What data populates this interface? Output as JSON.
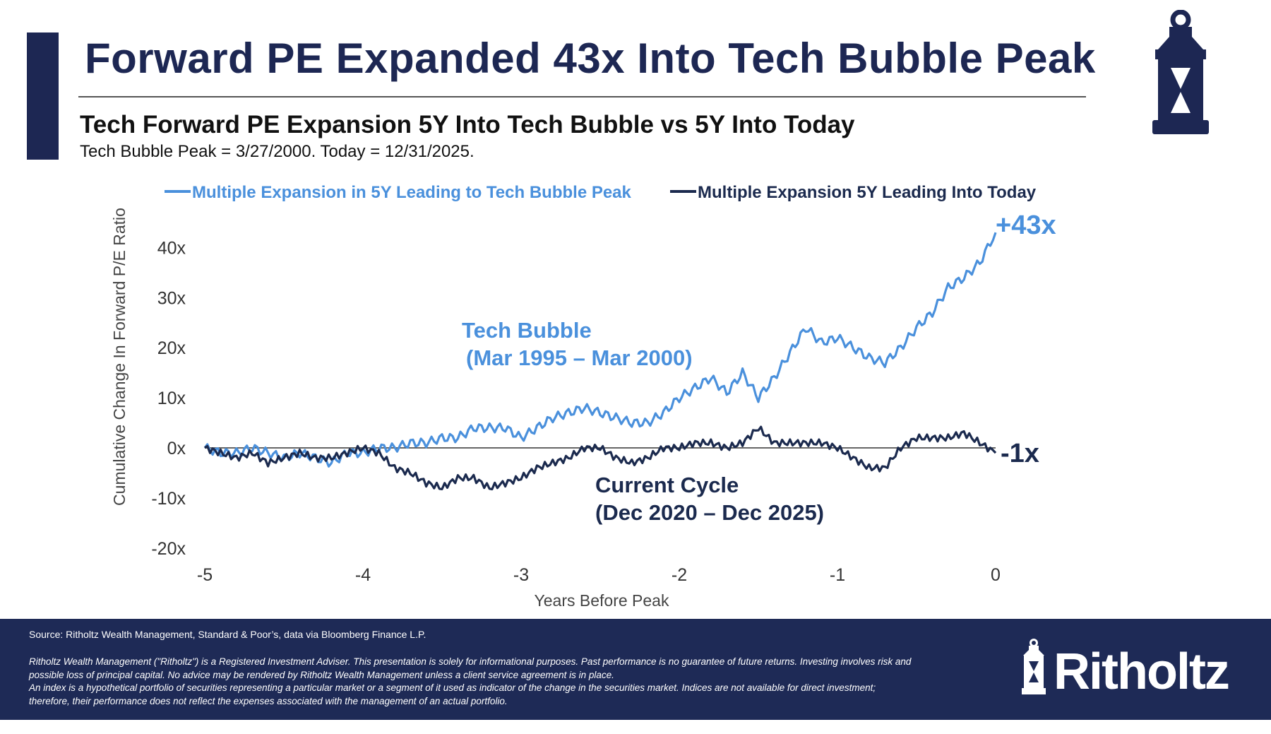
{
  "header": {
    "title": "Forward PE Expanded 43x Into Tech Bubble Peak",
    "subtitle": "Tech Forward PE Expansion 5Y Into Tech Bubble vs 5Y Into Today",
    "note": "Tech Bubble Peak = 3/27/2000. Today = 12/31/2025.",
    "icon": "lantern-icon"
  },
  "chart_data": {
    "type": "line",
    "xlabel": "Years Before Peak",
    "ylabel": "Cumulative Change In Forward P/E Ratio",
    "xlim": [
      -5,
      0
    ],
    "ylim": [
      -20,
      40
    ],
    "xticks": [
      "-5",
      "-4",
      "-3",
      "-2",
      "-1",
      "0"
    ],
    "yticks": [
      "40x",
      "30x",
      "20x",
      "10x",
      "0x",
      "-10x",
      "-20x"
    ],
    "grid": false,
    "legend_position": "top",
    "x": [
      -5,
      -4.9,
      -4.8,
      -4.7,
      -4.6,
      -4.5,
      -4.4,
      -4.3,
      -4.2,
      -4.1,
      -4,
      -3.9,
      -3.8,
      -3.7,
      -3.6,
      -3.5,
      -3.4,
      -3.3,
      -3.2,
      -3.1,
      -3,
      -2.9,
      -2.8,
      -2.7,
      -2.6,
      -2.5,
      -2.4,
      -2.3,
      -2.2,
      -2.1,
      -2,
      -1.9,
      -1.8,
      -1.7,
      -1.6,
      -1.5,
      -1.4,
      -1.3,
      -1.2,
      -1.1,
      -1,
      -0.9,
      -0.8,
      -0.7,
      -0.6,
      -0.5,
      -0.4,
      -0.3,
      -0.2,
      -0.1,
      0
    ],
    "series": [
      {
        "name": "Multiple Expansion in 5Y Leading to Tech Bubble Peak",
        "color": "#4a90dc",
        "values": [
          0,
          -1,
          -1,
          0,
          -1,
          -2,
          -1,
          -2,
          -3,
          -1,
          -1,
          0,
          0,
          1,
          1,
          2,
          2,
          4,
          4,
          4,
          2,
          4,
          6,
          7,
          8,
          7,
          6,
          5,
          5,
          7,
          10,
          12,
          14,
          11,
          15,
          10,
          14,
          19,
          24,
          21,
          22,
          20,
          18,
          17,
          20,
          24,
          27,
          32,
          34,
          37,
          43
        ]
      },
      {
        "name": "Multiple Expansion 5Y Leading Into Today",
        "color": "#1b2a4e",
        "values": [
          0,
          -1,
          -2,
          -1,
          -3,
          -2,
          -1,
          -2,
          -2,
          -1,
          0,
          -1,
          -4,
          -5,
          -7,
          -8,
          -6,
          -6,
          -8,
          -7,
          -6,
          -4,
          -3,
          -2,
          0,
          0,
          -2,
          -3,
          -2,
          0,
          0,
          1,
          1,
          0,
          1,
          4,
          1,
          1,
          1,
          1,
          0,
          -2,
          -4,
          -4,
          0,
          2,
          2,
          2,
          3,
          1,
          -1
        ]
      }
    ],
    "annotations": {
      "bubble_label": "Tech Bubble",
      "bubble_range": "(Mar 1995 – Mar 2000)",
      "current_label": "Current Cycle",
      "current_range": "(Dec 2020 – Dec 2025)",
      "bubble_end": "+43x",
      "current_end": "-1x"
    }
  },
  "footer": {
    "source": "Source: Ritholtz Wealth Management, Standard & Poor’s, data via Bloomberg Finance L.P.",
    "disclaimer": [
      "Ritholtz Wealth Management (\"Ritholtz\") is a Registered Investment Adviser. This presentation is solely for informational purposes. Past performance is no guarantee of future returns. Investing involves risk and",
      "possible loss of principal capital. No advice may be rendered by Ritholtz Wealth Management unless a client service agreement is in place.",
      "An index is a hypothetical portfolio of securities representing a particular market or a segment of it used as indicator of the change in the securities market. Indices are not available for direct investment;",
      "therefore, their performance does not reflect the expenses associated with the management of an actual portfolio."
    ],
    "logo_text": "Ritholtz"
  }
}
